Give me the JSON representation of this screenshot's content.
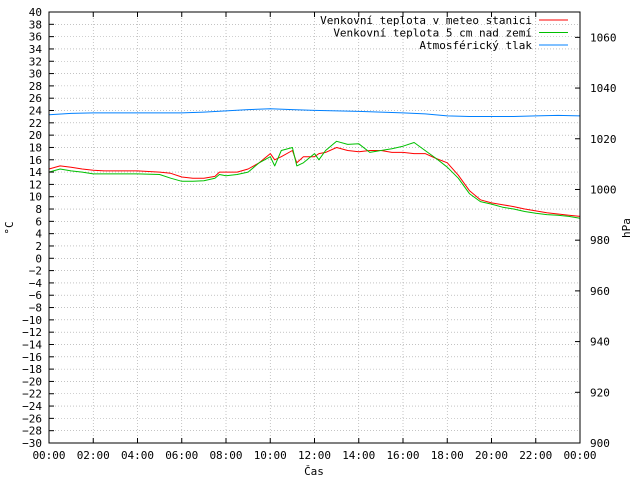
{
  "chart_data": {
    "type": "line",
    "title": "",
    "xlabel": "Čas",
    "ylabel": "°C",
    "y2label": "hPa",
    "x_ticks": [
      "00:00",
      "02:00",
      "04:00",
      "06:00",
      "08:00",
      "10:00",
      "12:00",
      "14:00",
      "16:00",
      "18:00",
      "20:00",
      "22:00",
      "00:00"
    ],
    "x_range_hours": [
      0,
      24
    ],
    "ylim": [
      -30,
      40
    ],
    "y_ticks": [
      "-30",
      "-28",
      "-26",
      "-24",
      "-22",
      "-20",
      "-18",
      "-16",
      "-14",
      "-12",
      "-10",
      "-8",
      "-6",
      "-4",
      "-2",
      "0",
      "2",
      "4",
      "6",
      "8",
      "10",
      "12",
      "14",
      "16",
      "18",
      "20",
      "22",
      "24",
      "26",
      "28",
      "30",
      "32",
      "34",
      "36",
      "38",
      "40"
    ],
    "y2lim": [
      900,
      1070
    ],
    "y2_ticks": [
      "900",
      "920",
      "940",
      "960",
      "980",
      "1000",
      "1020",
      "1040",
      "1060"
    ],
    "grid": "dotted",
    "legend_position": "top-right",
    "series": [
      {
        "name": "Venkovní teplota v meteo stanici",
        "color": "#ff0000",
        "axis": "left",
        "x": [
          0,
          0.5,
          1,
          1.5,
          2,
          2.5,
          3,
          4,
          5,
          5.5,
          6,
          6.5,
          7,
          7.5,
          7.7,
          8,
          8.5,
          9,
          9.5,
          10,
          10.2,
          10.5,
          11,
          11.2,
          11.5,
          12,
          12.2,
          12.5,
          13,
          13.5,
          14,
          14.5,
          15,
          15.5,
          16,
          16.5,
          17,
          17.5,
          18,
          18.5,
          19,
          19.5,
          20,
          20.5,
          21,
          21.5,
          22,
          22.5,
          23,
          23.5,
          24
        ],
        "y": [
          14.5,
          15,
          14.8,
          14.5,
          14.3,
          14.2,
          14.2,
          14.2,
          14,
          13.8,
          13.2,
          13,
          13,
          13.3,
          14,
          14,
          14,
          14.5,
          15.5,
          17,
          16,
          16.5,
          17.5,
          15.5,
          16.5,
          16.5,
          17,
          17.2,
          18,
          17.5,
          17.3,
          17.5,
          17.5,
          17.2,
          17.2,
          17,
          17,
          16.2,
          15.5,
          13.5,
          11,
          9.5,
          9,
          8.7,
          8.4,
          8,
          7.7,
          7.4,
          7.2,
          7,
          6.8
        ]
      },
      {
        "name": "Venkovní teplota 5 cm nad zemí",
        "color": "#00c000",
        "axis": "left",
        "x": [
          0,
          0.5,
          1,
          1.5,
          2,
          2.5,
          3,
          4,
          5,
          5.5,
          6,
          6.5,
          7,
          7.5,
          7.7,
          8,
          8.5,
          9,
          9.5,
          10,
          10.2,
          10.5,
          11,
          11.2,
          11.5,
          12,
          12.2,
          12.5,
          13,
          13.5,
          14,
          14.5,
          15,
          15.5,
          16,
          16.5,
          17,
          17.5,
          18,
          18.5,
          19,
          19.5,
          20,
          20.5,
          21,
          21.5,
          22,
          22.5,
          23,
          23.5,
          24
        ],
        "y": [
          14,
          14.5,
          14.2,
          14,
          13.7,
          13.7,
          13.7,
          13.7,
          13.6,
          13,
          12.5,
          12.5,
          12.6,
          13,
          13.6,
          13.4,
          13.6,
          14,
          15.5,
          16.5,
          15,
          17.5,
          18,
          15,
          15.5,
          17,
          16,
          17.5,
          19,
          18.5,
          18.6,
          17.2,
          17.5,
          17.8,
          18.2,
          18.8,
          17.5,
          16.2,
          14.8,
          13,
          10.5,
          9.2,
          8.8,
          8.3,
          8,
          7.6,
          7.3,
          7.1,
          7,
          6.8,
          6.5
        ]
      },
      {
        "name": "Atmosférický tlak",
        "color": "#0080ff",
        "axis": "right",
        "x": [
          0,
          1,
          2,
          3,
          4,
          5,
          6,
          7,
          8,
          9,
          10,
          11,
          12,
          13,
          14,
          15,
          16,
          17,
          18,
          19,
          20,
          21,
          22,
          23,
          24
        ],
        "y": [
          1029.5,
          1030,
          1030.2,
          1030.2,
          1030.2,
          1030.2,
          1030.2,
          1030.5,
          1031,
          1031.5,
          1031.8,
          1031.5,
          1031.2,
          1031,
          1030.8,
          1030.5,
          1030.2,
          1029.8,
          1029,
          1028.8,
          1028.8,
          1028.8,
          1029,
          1029.2,
          1029
        ]
      }
    ]
  }
}
